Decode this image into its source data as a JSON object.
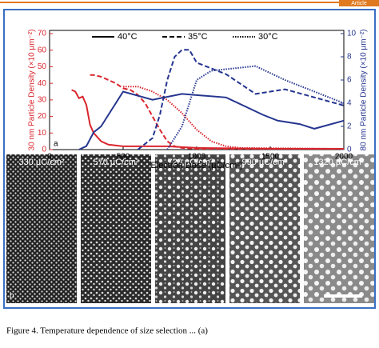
{
  "header": {
    "tag": "Article"
  },
  "chart_data": {
    "type": "line",
    "x_label": "Electron Dose (µC/cm²)",
    "y_label": "30 nm Particle Density (×10 µm⁻²)",
    "y2_label": "80 nm Particle Density (×10 µm⁻²)",
    "xlim": [
      0,
      2000
    ],
    "xticks": [
      0,
      500,
      1000,
      1500,
      2000
    ],
    "ylim": [
      0,
      70
    ],
    "yticks": [
      0,
      10,
      20,
      30,
      40,
      50,
      60,
      70
    ],
    "y2lim": [
      0,
      10
    ],
    "y2ticks": [
      0,
      2,
      4,
      6,
      8,
      10
    ],
    "legend": "top",
    "legend_names": [
      "40°C",
      "35°C",
      "30°C"
    ],
    "series": [
      {
        "name": "40°C",
        "color": "#d9262e",
        "style": "solid",
        "axis": "y",
        "x": [
          150,
          175,
          200,
          225,
          250,
          275,
          300,
          350,
          400,
          500,
          600,
          800,
          1000,
          1500,
          2000
        ],
        "values": [
          36,
          35,
          31,
          32,
          27,
          15,
          10,
          5,
          3,
          2,
          2,
          2,
          1,
          0.5,
          0.5
        ]
      },
      {
        "name": "35°C",
        "color": "#d9262e",
        "style": "dashed",
        "axis": "y",
        "x": [
          275,
          300,
          350,
          400,
          450,
          500,
          550,
          600,
          650,
          700,
          750,
          800,
          850,
          900,
          1000,
          2000
        ],
        "values": [
          45,
          45,
          44,
          42,
          40,
          37,
          36,
          33,
          28,
          20,
          12,
          5,
          2,
          1,
          0.5,
          0.5
        ]
      },
      {
        "name": "30°C",
        "color": "#d9262e",
        "style": "dotted",
        "axis": "y",
        "x": [
          500,
          600,
          700,
          800,
          900,
          1000,
          1100,
          1200,
          1300,
          2000
        ],
        "values": [
          38,
          38,
          35,
          30,
          22,
          12,
          5,
          2,
          1,
          0.5
        ]
      },
      {
        "name": "40°C",
        "color": "#26358f",
        "style": "solid",
        "axis": "y2",
        "x": [
          200,
          250,
          300,
          350,
          400,
          450,
          500,
          700,
          900,
          1200,
          1450,
          1550,
          1700,
          1800,
          2000
        ],
        "values": [
          0,
          0.3,
          1.5,
          2,
          3,
          4,
          5,
          4.3,
          4.8,
          4.5,
          3,
          2.5,
          2.2,
          1.8,
          2.5
        ]
      },
      {
        "name": "35°C",
        "color": "#26358f",
        "style": "dashed",
        "axis": "y2",
        "x": [
          600,
          700,
          750,
          800,
          850,
          900,
          950,
          1000,
          1200,
          1400,
          1600,
          2000
        ],
        "values": [
          0,
          1,
          3,
          6,
          8,
          8.6,
          8.6,
          7.5,
          6.5,
          4.8,
          5.2,
          3.8
        ]
      },
      {
        "name": "30°C",
        "color": "#26358f",
        "style": "dotted",
        "axis": "y2",
        "x": [
          800,
          900,
          950,
          1000,
          1100,
          1400,
          1600,
          1800,
          2000
        ],
        "values": [
          0,
          2,
          4,
          6,
          6.8,
          7.2,
          6,
          5,
          4
        ]
      }
    ]
  },
  "panel_labels": [
    "a",
    "b"
  ],
  "micrographs": [
    "330 µC/cm²",
    "570 µC/cm²",
    "720 µC/cm²",
    "990 µC/cm²",
    "1320 µC/cm²"
  ],
  "caption": "Figure 4. Temperature dependence of size selection ... (a)"
}
